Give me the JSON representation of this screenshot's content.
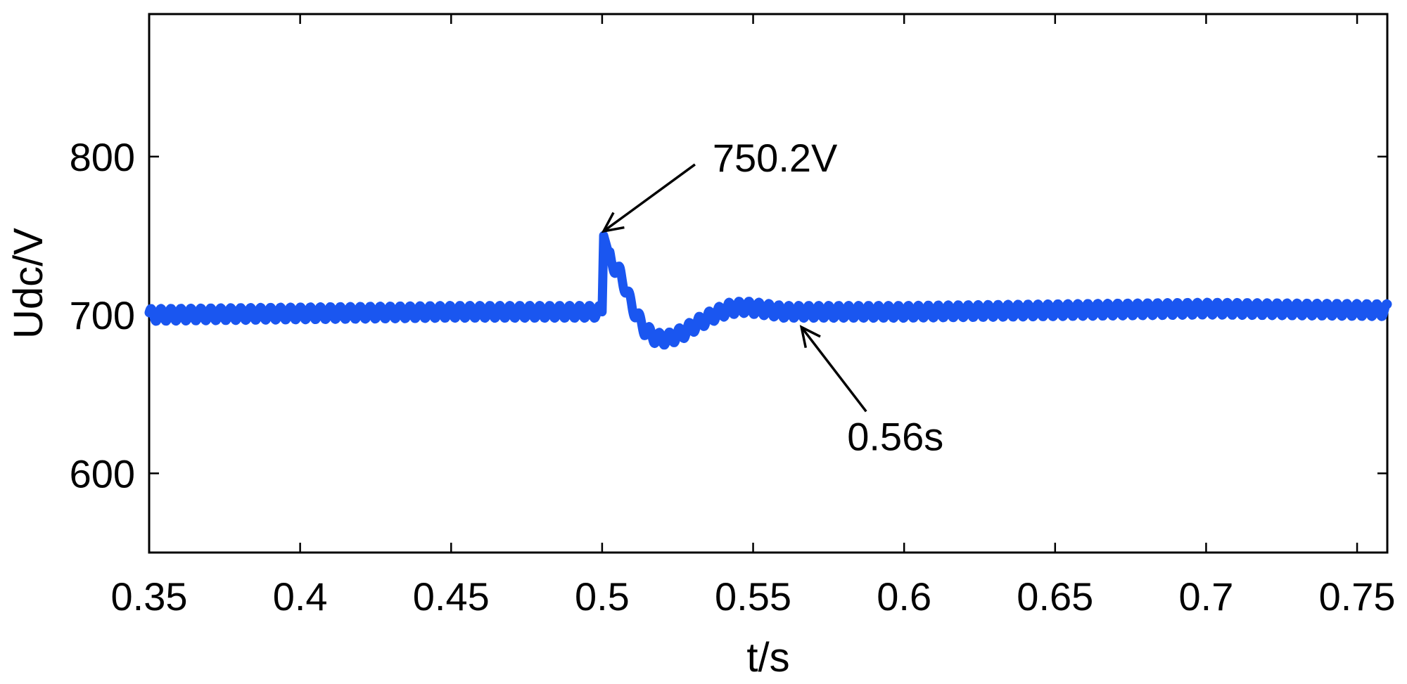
{
  "chart_data": {
    "type": "line",
    "xlabel": "t/s",
    "ylabel": "Udc/V",
    "xlim": [
      0.35,
      0.76
    ],
    "ylim": [
      550,
      890
    ],
    "xticks": [
      0.35,
      0.4,
      0.45,
      0.5,
      0.55,
      0.6,
      0.65,
      0.7,
      0.75
    ],
    "xtick_labels": [
      "0.35",
      "0.4",
      "0.45",
      "0.5",
      "0.55",
      "0.6",
      "0.65",
      "0.7",
      "0.75"
    ],
    "yticks": [
      600,
      700,
      800
    ],
    "ytick_labels": [
      "600",
      "700",
      "800"
    ],
    "grid": false,
    "series": [
      {
        "color": "#1a56f0",
        "ripple_amplitude_v": 4,
        "ripple_period_s": 0.0033,
        "points": [
          [
            0.35,
            700
          ],
          [
            0.45,
            702
          ],
          [
            0.499,
            702
          ],
          [
            0.5,
            702
          ],
          [
            0.5005,
            750.2
          ],
          [
            0.503,
            733
          ],
          [
            0.506,
            726
          ],
          [
            0.51,
            705
          ],
          [
            0.514,
            691
          ],
          [
            0.518,
            685
          ],
          [
            0.522,
            685
          ],
          [
            0.527,
            689
          ],
          [
            0.532,
            695
          ],
          [
            0.537,
            700
          ],
          [
            0.542,
            704
          ],
          [
            0.547,
            705
          ],
          [
            0.552,
            704
          ],
          [
            0.56,
            702
          ],
          [
            0.6,
            702
          ],
          [
            0.65,
            703
          ],
          [
            0.7,
            704
          ],
          [
            0.76,
            703
          ]
        ]
      }
    ],
    "annotations": [
      {
        "text": "750.2V",
        "x": 0.5,
        "y": 750.2
      },
      {
        "text": "0.56s",
        "x": 0.566,
        "y": 695
      }
    ]
  }
}
